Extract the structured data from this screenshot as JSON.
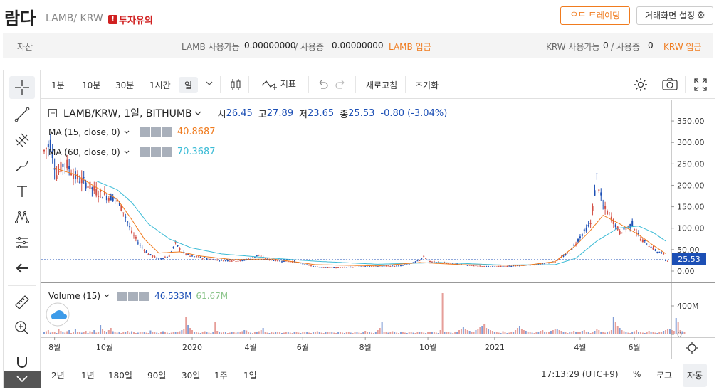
{
  "header": {
    "coin_name": "람다",
    "pair": "LAMB/ KRW",
    "warning": "투자유의",
    "warning_badge": "!",
    "auto_trading": "오토 트레이딩",
    "screen_settings": "거래화면 설정"
  },
  "assets": {
    "label": "자산",
    "lamb_available_label": "LAMB 사용가능",
    "lamb_available": "0.00000000",
    "lamb_inuse_label": "/ 사용중",
    "lamb_inuse": "0.00000000",
    "lamb_deposit": "LAMB 입금",
    "krw_available_label": "KRW 사용가능",
    "krw_available": "0",
    "krw_inuse_label": "/ 사용중",
    "krw_inuse": "0",
    "krw_deposit": "KRW 입금"
  },
  "toolbar": {
    "intervals": [
      "1분",
      "10분",
      "30분",
      "1시간",
      "일"
    ],
    "indicators": "지표",
    "refresh": "새로고침",
    "reset": "초기화"
  },
  "legend": {
    "symbol": "LAMB/KRW, 1일, BITHUMB",
    "o_label": "시",
    "o": "26.45",
    "h_label": "고",
    "h": "27.89",
    "l_label": "저",
    "l": "23.65",
    "c_label": "종",
    "c": "25.53",
    "change": "-0.80 (-3.04%)",
    "ma15_label": "MA (15, close, 0)",
    "ma15_value": "40.8687",
    "ma60_label": "MA (60, close, 0)",
    "ma60_value": "70.3687",
    "volume_label": "Volume (15)",
    "volume_value": "46.533M",
    "volume_ma": "61.67M"
  },
  "colors": {
    "up": "#d24f45",
    "down": "#1c4fb5",
    "ma15": "#f07b1e",
    "ma60": "#3bbbd6",
    "accent": "#f07b1e"
  },
  "price_axis": {
    "ticks": [
      "350.00",
      "300.00",
      "250.00",
      "200.00",
      "150.00",
      "100.00",
      "50.00",
      "0.00"
    ],
    "last_price": "25.53"
  },
  "volume_axis": {
    "ticks": [
      "400M",
      "0"
    ]
  },
  "time_axis": {
    "ticks": [
      "8월",
      "10월",
      "2020",
      "4월",
      "6월",
      "8월",
      "10월",
      "2021",
      "4월",
      "6월"
    ]
  },
  "ranges": [
    "2년",
    "1년",
    "180일",
    "90일",
    "30일",
    "1주",
    "1일"
  ],
  "footer": {
    "time": "17:13:29 (UTC+9)",
    "percent": "%",
    "log": "로그",
    "auto": "자동"
  },
  "chart_data": {
    "type": "candlestick",
    "price_ylim": [
      0,
      370
    ],
    "volume_ylim": [
      0,
      500
    ],
    "volume_unit": "M",
    "price_series": {
      "name": "LAMB/KRW",
      "points": [
        [
          0,
          280
        ],
        [
          3,
          300
        ],
        [
          6,
          225
        ],
        [
          10,
          255
        ],
        [
          15,
          220
        ],
        [
          20,
          205
        ],
        [
          25,
          185
        ],
        [
          30,
          175
        ],
        [
          34,
          170
        ],
        [
          38,
          140
        ],
        [
          42,
          90
        ],
        [
          46,
          60
        ],
        [
          50,
          40
        ],
        [
          55,
          28
        ],
        [
          60,
          35
        ],
        [
          63,
          65
        ],
        [
          66,
          45
        ],
        [
          70,
          35
        ],
        [
          75,
          32
        ],
        [
          80,
          28
        ],
        [
          85,
          25
        ],
        [
          95,
          24
        ],
        [
          100,
          32
        ],
        [
          103,
          38
        ],
        [
          106,
          28
        ],
        [
          112,
          24
        ],
        [
          120,
          22
        ],
        [
          130,
          10
        ],
        [
          140,
          8
        ],
        [
          150,
          10
        ],
        [
          160,
          12
        ],
        [
          170,
          12
        ],
        [
          175,
          16
        ],
        [
          180,
          25
        ],
        [
          182,
          35
        ],
        [
          185,
          22
        ],
        [
          195,
          18
        ],
        [
          205,
          13
        ],
        [
          215,
          10
        ],
        [
          225,
          12
        ],
        [
          235,
          15
        ],
        [
          245,
          22
        ],
        [
          252,
          45
        ],
        [
          257,
          80
        ],
        [
          262,
          110
        ],
        [
          265,
          220
        ],
        [
          268,
          150
        ],
        [
          272,
          125
        ],
        [
          276,
          90
        ],
        [
          282,
          110
        ],
        [
          286,
          75
        ],
        [
          290,
          60
        ],
        [
          294,
          45
        ],
        [
          297,
          40
        ],
        [
          298,
          25
        ]
      ]
    },
    "ma15_series": {
      "name": "MA (15, close, 0)",
      "points": [
        [
          5,
          240
        ],
        [
          15,
          225
        ],
        [
          25,
          195
        ],
        [
          35,
          168
        ],
        [
          42,
          120
        ],
        [
          48,
          75
        ],
        [
          55,
          42
        ],
        [
          65,
          45
        ],
        [
          75,
          35
        ],
        [
          90,
          27
        ],
        [
          110,
          28
        ],
        [
          130,
          15
        ],
        [
          160,
          12
        ],
        [
          180,
          20
        ],
        [
          200,
          15
        ],
        [
          230,
          13
        ],
        [
          245,
          22
        ],
        [
          255,
          60
        ],
        [
          262,
          95
        ],
        [
          268,
          130
        ],
        [
          276,
          110
        ],
        [
          285,
          85
        ],
        [
          292,
          60
        ],
        [
          298,
          41
        ]
      ]
    },
    "ma60_series": {
      "name": "MA (60, close, 0)",
      "points": [
        [
          25,
          210
        ],
        [
          35,
          190
        ],
        [
          42,
          160
        ],
        [
          50,
          110
        ],
        [
          60,
          75
        ],
        [
          70,
          55
        ],
        [
          85,
          40
        ],
        [
          110,
          30
        ],
        [
          130,
          23
        ],
        [
          160,
          16
        ],
        [
          190,
          20
        ],
        [
          220,
          14
        ],
        [
          245,
          15
        ],
        [
          255,
          30
        ],
        [
          265,
          70
        ],
        [
          275,
          100
        ],
        [
          285,
          105
        ],
        [
          292,
          90
        ],
        [
          298,
          70
        ]
      ]
    },
    "volume_bars": [
      30,
      45,
      60,
      25,
      40,
      35,
      20,
      70,
      50,
      30,
      25,
      45,
      60,
      20,
      35,
      70,
      40,
      30,
      25,
      35,
      50,
      20,
      45,
      30,
      60,
      25,
      40,
      130,
      80,
      50,
      35,
      60,
      90,
      45,
      30,
      25,
      40,
      20,
      35,
      30,
      50,
      25,
      45,
      30,
      20,
      25,
      30,
      40,
      35,
      25,
      20,
      55,
      40,
      30,
      25,
      20,
      30,
      45,
      35,
      25,
      20,
      25,
      35,
      30,
      40,
      45,
      60,
      80,
      250,
      130,
      90,
      60,
      40,
      30,
      25,
      20,
      35,
      45,
      30,
      25,
      20,
      30,
      170,
      50,
      30,
      25,
      40,
      30,
      20,
      25,
      30,
      35,
      25,
      40,
      30,
      45,
      60,
      55,
      30,
      25,
      20,
      30,
      35,
      45,
      60,
      90,
      30,
      25,
      20,
      30,
      25,
      35,
      40,
      30,
      20,
      25,
      30,
      40,
      25,
      20,
      30,
      35,
      25,
      20,
      30,
      40,
      35,
      25,
      20,
      30,
      40,
      45,
      30,
      25,
      20,
      30,
      35,
      40,
      30,
      25,
      20,
      30,
      35,
      25,
      20,
      40,
      30,
      25,
      20,
      35,
      30,
      25,
      20,
      30,
      50,
      40,
      30,
      25,
      20,
      30,
      60,
      90,
      180,
      40,
      30,
      25,
      35,
      45,
      30,
      25,
      20,
      40,
      30,
      25,
      20,
      30,
      35,
      25,
      20,
      30,
      40,
      30,
      25,
      20,
      30,
      35,
      40,
      30,
      25,
      20,
      60,
      580,
      30,
      40,
      30,
      25,
      20,
      30,
      40,
      60,
      80,
      100,
      70,
      60,
      50,
      40,
      30,
      60,
      80,
      100,
      120,
      150,
      90,
      70,
      60,
      50,
      40,
      30,
      25,
      20,
      45,
      30,
      20,
      25,
      30,
      40,
      60,
      90,
      120,
      80,
      60,
      50,
      40,
      30,
      25,
      20,
      30,
      40,
      50,
      60,
      40,
      30,
      40,
      50,
      60,
      70,
      80,
      60,
      50,
      40,
      30,
      20,
      30,
      40,
      50,
      35,
      30,
      40,
      50,
      60,
      40,
      30,
      20,
      35,
      50,
      70,
      60,
      40,
      30,
      25,
      35,
      45,
      60,
      250,
      180,
      120,
      90,
      60,
      45,
      30,
      25,
      20,
      30,
      45,
      60,
      40,
      30,
      25,
      20,
      35,
      50,
      40,
      30,
      25,
      20,
      30,
      40,
      50,
      60,
      70,
      80,
      60,
      50,
      230,
      170,
      60,
      45,
      30
    ]
  }
}
